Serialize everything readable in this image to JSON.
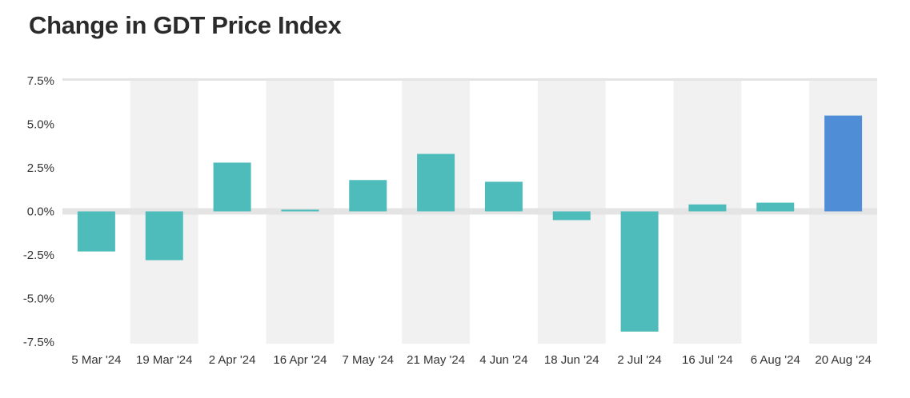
{
  "chart_data": {
    "type": "bar",
    "title": "Change in GDT Price Index",
    "xlabel": "",
    "ylabel": "",
    "categories": [
      "5 Mar '24",
      "19 Mar '24",
      "2 Apr '24",
      "16 Apr '24",
      "7 May '24",
      "21 May '24",
      "4 Jun '24",
      "18 Jun '24",
      "2 Jul '24",
      "16 Jul '24",
      "6 Aug '24",
      "20 Aug '24"
    ],
    "values": [
      -2.3,
      -2.8,
      2.8,
      0.1,
      1.8,
      3.3,
      1.7,
      -0.5,
      -6.9,
      0.4,
      0.5,
      5.5
    ],
    "ylim": [
      -7.5,
      7.5
    ],
    "yticks": [
      7.5,
      5.0,
      2.5,
      0.0,
      -2.5,
      -5.0,
      -7.5
    ],
    "ytick_labels": [
      "7.5%",
      "5.0%",
      "2.5%",
      "0.0%",
      "-2.5%",
      "-5.0%",
      "-7.5%"
    ],
    "grid": false,
    "alternating_column_bands": true,
    "colors": {
      "bar": "#4fbcbc",
      "highlight_bar": "#4f8ed6",
      "band": "#f1f1f1",
      "zero_line": "#e4e4e4",
      "text": "#333333",
      "title": "#2b2b2b"
    },
    "highlight_index": 11
  }
}
